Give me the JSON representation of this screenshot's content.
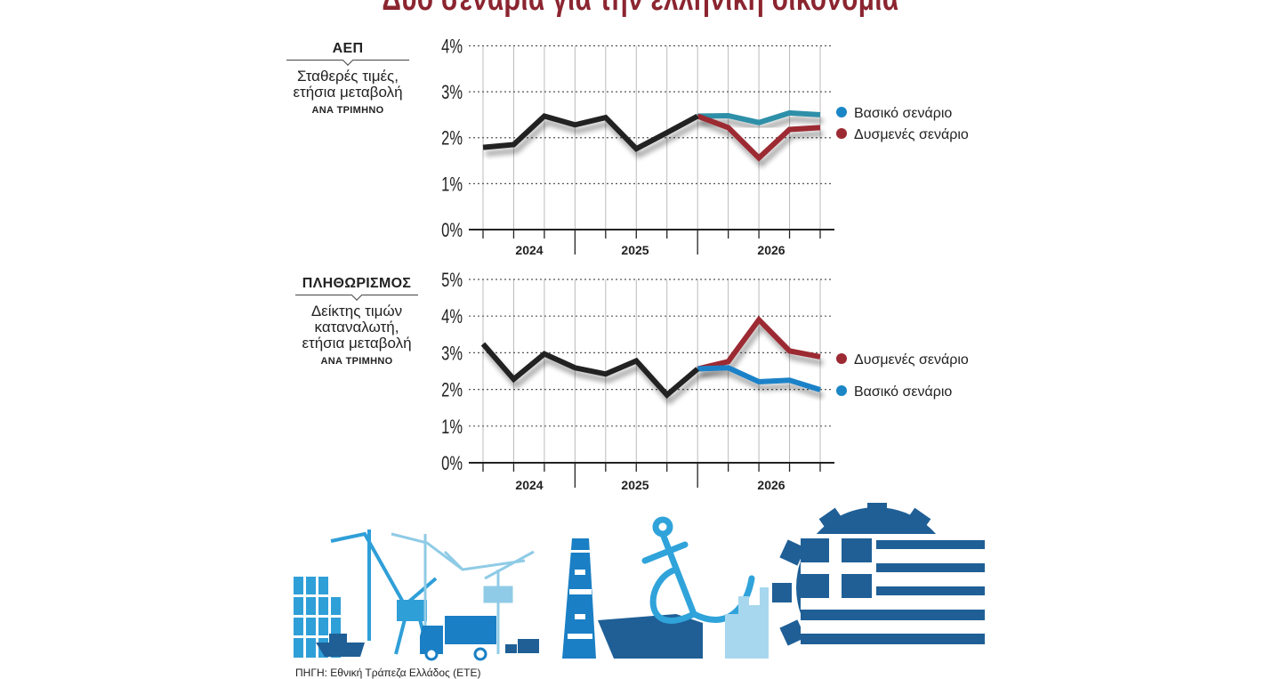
{
  "title": "Δύο σενάρια για την ελληνική οικονομία",
  "source": "ΠΗΓΗ: Εθνική Τράπεζα Ελλάδος (ΕΤΕ)",
  "colors": {
    "actual": "#222222",
    "base_gdp": "#2e8fa8",
    "base_cpi": "#1a82c8",
    "base_dot": "#1a86c6",
    "adverse": "#9c2a33",
    "title": "#8b2530"
  },
  "panels": [
    {
      "heading": "ΑΕΠ",
      "subtitle_lines": [
        "Σταθερές τιμές,",
        "ετήσια μεταβολή"
      ],
      "period": "ΑΝΑ ΤΡΙΜΗΝΟ"
    },
    {
      "heading": "ΠΛΗΘΩΡΙΣΜΟΣ",
      "subtitle_lines": [
        "Δείκτης τιμών",
        "καταναλωτή,",
        "ετήσια μεταβολή"
      ],
      "period": "ΑΝΑ ΤΡΙΜΗΝΟ"
    }
  ],
  "chart_data": [
    {
      "type": "line",
      "ylabel": "",
      "ylim": [
        0,
        4
      ],
      "yticks": [
        "0%",
        "1%",
        "2%",
        "3%",
        "4%"
      ],
      "x_group_labels": [
        "2024",
        "2025",
        "2026"
      ],
      "grid": true,
      "legend_placement": "right",
      "x": [
        0,
        1,
        2,
        3,
        4,
        5,
        6,
        7,
        8,
        9,
        10,
        11
      ],
      "series": [
        {
          "key": "actual",
          "values": [
            1.79,
            1.85,
            2.47,
            2.28,
            2.44,
            1.76,
            2.11,
            2.47,
            null,
            null,
            null,
            null
          ]
        },
        {
          "key": "base",
          "name": "Βασικό σενάριο",
          "values": [
            null,
            null,
            null,
            null,
            null,
            null,
            null,
            2.47,
            2.48,
            2.33,
            2.54,
            2.5
          ]
        },
        {
          "key": "adverse",
          "name": "Δυσμενές σενάριο",
          "values": [
            null,
            null,
            null,
            null,
            null,
            null,
            null,
            2.47,
            2.22,
            1.56,
            2.18,
            2.22
          ]
        }
      ]
    },
    {
      "type": "line",
      "ylabel": "",
      "ylim": [
        0,
        5
      ],
      "yticks": [
        "0%",
        "1%",
        "2%",
        "3%",
        "4%",
        "5%"
      ],
      "x_group_labels": [
        "2024",
        "2025",
        "2026"
      ],
      "grid": true,
      "legend_placement": "right",
      "x": [
        0,
        1,
        2,
        3,
        4,
        5,
        6,
        7,
        8,
        9,
        10,
        11
      ],
      "series": [
        {
          "key": "actual",
          "values": [
            3.24,
            2.28,
            2.97,
            2.59,
            2.42,
            2.78,
            1.85,
            2.56,
            null,
            null,
            null,
            null
          ]
        },
        {
          "key": "adverse",
          "name": "Δυσμενές σενάριο",
          "values": [
            null,
            null,
            null,
            null,
            null,
            null,
            null,
            2.56,
            2.76,
            3.9,
            3.05,
            2.89
          ]
        },
        {
          "key": "base",
          "name": "Βασικό σενάριο",
          "values": [
            null,
            null,
            null,
            null,
            null,
            null,
            null,
            2.56,
            2.59,
            2.21,
            2.25,
            1.99
          ]
        }
      ]
    }
  ]
}
